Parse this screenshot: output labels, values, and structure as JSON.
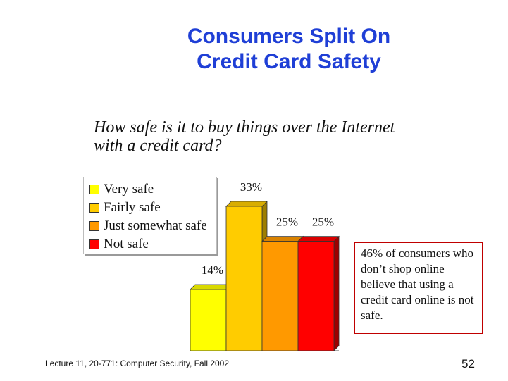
{
  "slide": {
    "title_line1": "Consumers Split On",
    "title_line2": "Credit Card Safety",
    "question_line1": "How safe is it to buy things over the Internet",
    "question_line2": "with a credit card?",
    "callout": "46% of consumers who don’t shop online believe that using a credit card online is not safe.",
    "footer": "Lecture 11, 20-771: Computer Security, Fall 2002",
    "page_number": "52"
  },
  "chart_data": {
    "type": "bar",
    "categories": [
      "Very safe",
      "Fairly safe",
      "Just somewhat safe",
      "Not safe"
    ],
    "values": [
      14,
      33,
      25,
      25
    ],
    "data_labels": [
      "14%",
      "33%",
      "25%",
      "25%"
    ],
    "colors": [
      "#ffff00",
      "#ffcc00",
      "#ff9900",
      "#ff0000"
    ],
    "ylim": [
      0,
      33
    ],
    "legend_placement": "top-left",
    "grid": false,
    "title": "",
    "xlabel": "",
    "ylabel": ""
  }
}
